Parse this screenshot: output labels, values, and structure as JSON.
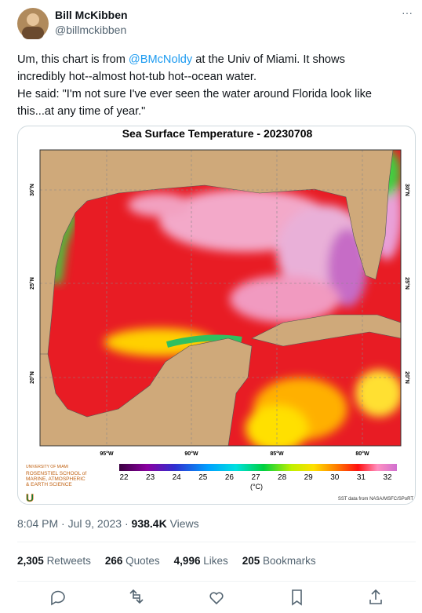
{
  "tweet": {
    "author": {
      "name": "Bill McKibben",
      "handle": "@billmckibben"
    },
    "more": "···",
    "text": {
      "line1_before": "Um, this chart is from ",
      "mention": "@BMcNoldy",
      "line1_after": " at the Univ of Miami. It shows",
      "line2": "incredibly hot--almost hot-tub hot--ocean water.",
      "line3": "He said: \"I'm not sure I've ever seen the water around Florida look like",
      "line4": "this...at any time of year.\""
    },
    "image": {
      "title": "Sea Surface Temperature - 20230708",
      "lat_labels": [
        "30°N",
        "25°N",
        "20°N"
      ],
      "lon_labels": [
        "95°W",
        "90°W",
        "85°W",
        "80°W"
      ],
      "colorbar_ticks": [
        22,
        23,
        24,
        25,
        26,
        27,
        28,
        29,
        30,
        31,
        32
      ],
      "colorbar_unit": "(°C)",
      "logo_top": "UNIVERSITY OF MIAMI",
      "logo_lines": [
        "ROSENSTIEL SCHOOL of",
        "MARINE, ATMOSPHERIC",
        "& EARTH SCIENCE"
      ],
      "logo_mark": "U",
      "credit": "SST data from NASA/MSFC/SPoRT"
    },
    "meta": {
      "time": "8:04 PM · Jul 9, 2023 · ",
      "views": "938.4K",
      "views_label": " Views"
    },
    "stats": [
      {
        "count": "2,305",
        "label": "Retweets"
      },
      {
        "count": "266",
        "label": "Quotes"
      },
      {
        "count": "4,996",
        "label": "Likes"
      },
      {
        "count": "205",
        "label": "Bookmarks"
      }
    ]
  }
}
